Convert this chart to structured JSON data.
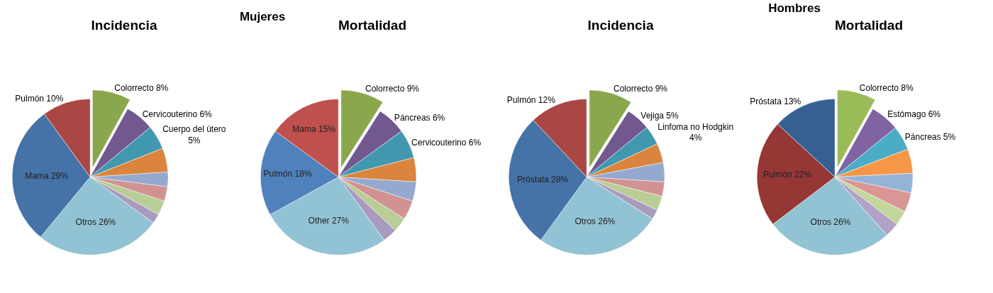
{
  "chart_data": [
    {
      "type": "pie",
      "title": "Incidencia",
      "annotations": [
        "Mujeres"
      ],
      "categories": [
        "Colorrecto",
        "Cervicouterino",
        "Cuerpo del útero",
        null,
        null,
        null,
        null,
        null,
        "Otros",
        "Mama",
        "Pulmón"
      ],
      "values": [
        8,
        6,
        5,
        5,
        3,
        3,
        3,
        2,
        26,
        29,
        10
      ],
      "value_labels": [
        "8%",
        "6%",
        "5%",
        null,
        null,
        null,
        null,
        null,
        "26%",
        "29%",
        "10%"
      ],
      "colors": [
        "#8aa74e",
        "#71588f",
        "#4198af",
        "#db843d",
        "#93a9cf",
        "#d19392",
        "#b9cd96",
        "#a99bbd",
        "#92c3d4",
        "#4572a7",
        "#aa4643"
      ]
    },
    {
      "type": "pie",
      "title": "Mortalidad",
      "categories": [
        "Colorrecto",
        "Páncreas",
        "Cervicouterino",
        null,
        null,
        null,
        null,
        null,
        "Other",
        "Pulmón",
        "Mama"
      ],
      "values": [
        9,
        6,
        6,
        5,
        4,
        4,
        3,
        3,
        27,
        18,
        15
      ],
      "value_labels": [
        "9%",
        "6%",
        "6%",
        null,
        null,
        null,
        null,
        null,
        "27%",
        "18%",
        "15%"
      ],
      "colors": [
        "#8aa74e",
        "#71588f",
        "#4198af",
        "#db843d",
        "#93a9cf",
        "#d19392",
        "#b9cd96",
        "#a99bbd",
        "#92c3d4",
        "#4f81bd",
        "#c0504d"
      ]
    },
    {
      "type": "pie",
      "title": "Incidencia",
      "annotations": [
        "Hombres"
      ],
      "categories": [
        "Colorrecto",
        "Vejiga",
        "Linfoma no Hodgkin",
        null,
        null,
        null,
        null,
        null,
        "Otros",
        "Próstata",
        "Pulmón"
      ],
      "values": [
        9,
        5,
        4,
        4,
        4,
        3,
        3,
        2,
        26,
        28,
        12
      ],
      "value_labels": [
        "9%",
        "5%",
        "4%",
        null,
        null,
        null,
        null,
        null,
        "26%",
        "28%",
        "12%"
      ],
      "colors": [
        "#8aa74e",
        "#71588f",
        "#4198af",
        "#db843d",
        "#93a9cf",
        "#d19392",
        "#b9cd96",
        "#a99bbd",
        "#92c3d4",
        "#4572a7",
        "#aa4643"
      ]
    },
    {
      "type": "pie",
      "title": "Mortalidad",
      "categories": [
        "Colorrecto",
        "Estómago",
        "Páncreas",
        null,
        null,
        null,
        null,
        null,
        "Otros",
        "Pulmón",
        "Próstata"
      ],
      "values": [
        8,
        6,
        5,
        5,
        4,
        4,
        3,
        3,
        26,
        22,
        13
      ],
      "value_labels": [
        "8%",
        "6%",
        "5%",
        null,
        null,
        null,
        null,
        null,
        "26%",
        "22%",
        "13%"
      ],
      "colors": [
        "#9bbb59",
        "#8064a2",
        "#4bacc6",
        "#f79646",
        "#95b3d7",
        "#d99694",
        "#c3d69b",
        "#b2a2c7",
        "#92c3d4",
        "#953735",
        "#376092"
      ]
    }
  ]
}
